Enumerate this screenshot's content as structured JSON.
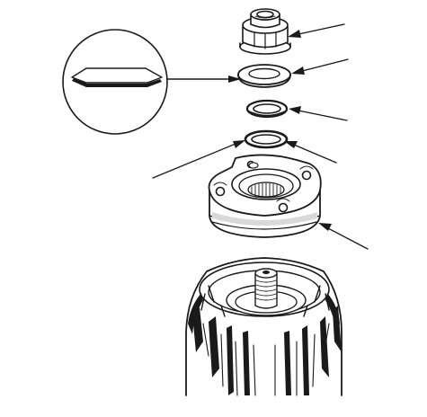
{
  "figure": {
    "background": "#ffffff",
    "line_color": "#1a1a1a",
    "fill_color": "#ffffff",
    "shade_color": "#d9d9d9",
    "labels": []
  },
  "parts": [
    {
      "name": "flange-nut",
      "leader": "callout-top-right"
    },
    {
      "name": "thrust-washer",
      "leader": "callout-right"
    },
    {
      "name": "seal-ring-upper",
      "leader": "callout-right"
    },
    {
      "name": "seal-ring-lower",
      "leader": "callout-right-angled"
    },
    {
      "name": "bearing-housing-cover",
      "leader": "callout-lower-right"
    },
    {
      "name": "detail-inset-washer-section",
      "leader": "callout-inset"
    },
    {
      "name": "gear-case",
      "leader": ""
    }
  ]
}
